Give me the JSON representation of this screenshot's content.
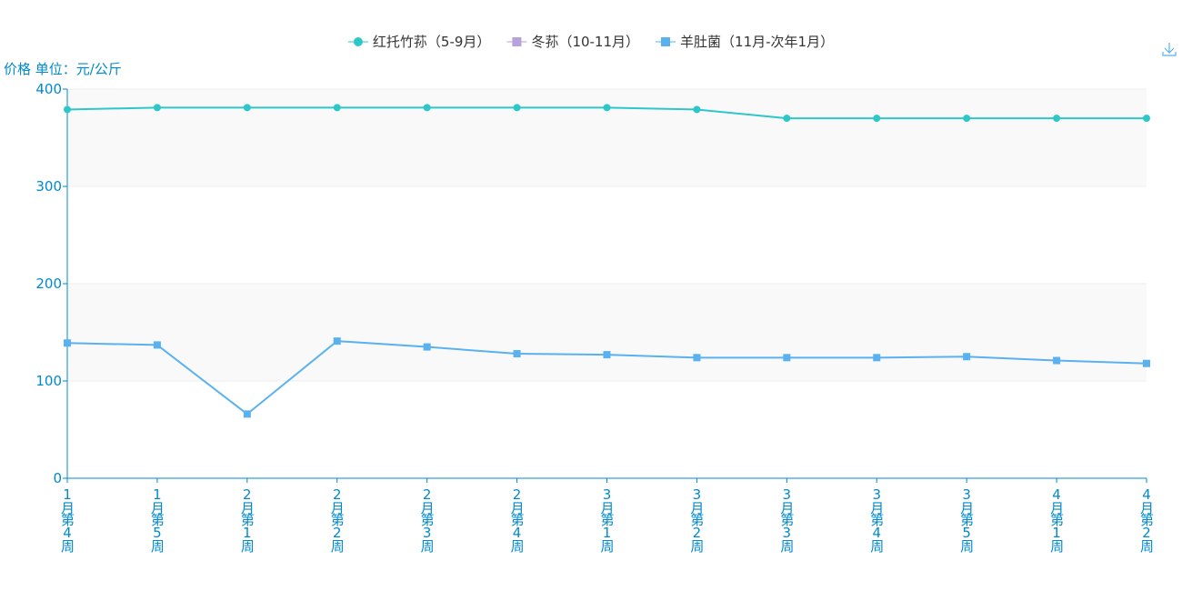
{
  "chart_data": {
    "type": "line",
    "y_axis_label": "价格 单位：元/公斤",
    "categories": [
      "1月第4周",
      "1月第5周",
      "2月第1周",
      "2月第2周",
      "2月第3周",
      "2月第4周",
      "3月第1周",
      "3月第2周",
      "3月第3周",
      "3月第4周",
      "3月第5周",
      "4月第1周",
      "4月第2周"
    ],
    "series": [
      {
        "name": "红托竹荪（5-9月）",
        "color": "#2ec7c9",
        "symbol": "circle",
        "values": [
          379,
          381,
          381,
          381,
          381,
          381,
          381,
          379,
          370,
          370,
          370,
          370,
          370
        ]
      },
      {
        "name": "冬荪（10-11月）",
        "color": "#b6a2de",
        "symbol": "square",
        "values": [
          null,
          null,
          null,
          null,
          null,
          null,
          null,
          null,
          null,
          null,
          null,
          null,
          null
        ]
      },
      {
        "name": "羊肚菌（11月-次年1月）",
        "color": "#5ab1ef",
        "symbol": "square",
        "values": [
          139,
          137,
          66,
          141,
          135,
          128,
          127,
          124,
          124,
          124,
          125,
          121,
          118
        ]
      }
    ],
    "ylim": [
      0,
      400
    ],
    "yticks": [
      0,
      100,
      200,
      300,
      400
    ],
    "grid": true,
    "split_area": true,
    "legend_position": "top"
  }
}
